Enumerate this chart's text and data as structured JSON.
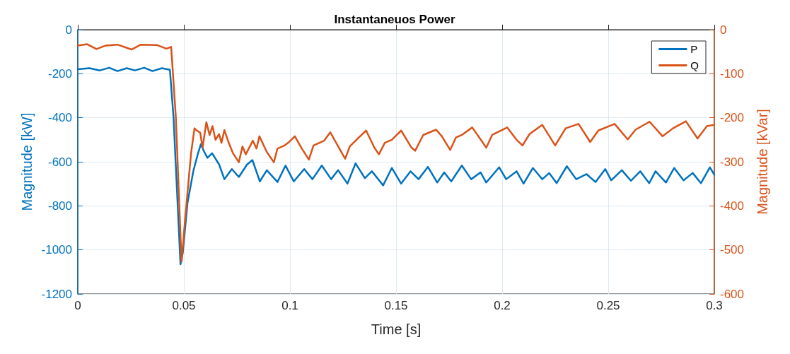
{
  "chart_data": {
    "type": "line",
    "title": "Instantaneuos Power",
    "xlabel": "Time [s]",
    "ylabel": "Magnitude [kW]",
    "y2label": "Magnitude [kVar]",
    "xlim": [
      0,
      0.3
    ],
    "xticks": [
      0,
      0.05,
      0.1,
      0.15,
      0.2,
      0.25,
      0.3
    ],
    "ylim": [
      -1200,
      0
    ],
    "yticks": [
      -1200,
      -1000,
      -800,
      -600,
      -400,
      -200,
      0
    ],
    "y2lim": [
      -600,
      0
    ],
    "y2ticks": [
      -600,
      -500,
      -400,
      -300,
      -200,
      -100,
      0
    ],
    "grid": true,
    "legend": "top right",
    "marker": "none",
    "line_style": "solid",
    "series": [
      {
        "name": "P",
        "color": "#0072bd",
        "x": [
          0,
          0.0055,
          0.0104,
          0.0148,
          0.0187,
          0.0231,
          0.0269,
          0.0313,
          0.0352,
          0.0396,
          0.0434,
          0.0451,
          0.0484,
          0.0495,
          0.0517,
          0.0545,
          0.0567,
          0.058,
          0.0594,
          0.0611,
          0.0633,
          0.0666,
          0.0691,
          0.0726,
          0.0759,
          0.0798,
          0.0823,
          0.0858,
          0.0891,
          0.0941,
          0.0979,
          0.1018,
          0.1067,
          0.1106,
          0.115,
          0.1194,
          0.1227,
          0.1271,
          0.1309,
          0.1353,
          0.1386,
          0.1439,
          0.148,
          0.1524,
          0.1568,
          0.1606,
          0.165,
          0.1694,
          0.1727,
          0.176,
          0.181,
          0.1854,
          0.1898,
          0.1925,
          0.1986,
          0.2019,
          0.2068,
          0.2101,
          0.2145,
          0.2189,
          0.2222,
          0.2257,
          0.2305,
          0.2349,
          0.2398,
          0.244,
          0.2486,
          0.2514,
          0.2564,
          0.2607,
          0.2651,
          0.2693,
          0.2723,
          0.2772,
          0.2811,
          0.2855,
          0.2898,
          0.2937,
          0.2979,
          0.3
        ],
        "values": [
          -180,
          -175,
          -185,
          -173,
          -188,
          -175,
          -185,
          -173,
          -188,
          -175,
          -182,
          -396,
          -1065,
          -1012,
          -787,
          -640,
          -560,
          -520,
          -551,
          -582,
          -561,
          -612,
          -679,
          -633,
          -669,
          -612,
          -592,
          -689,
          -638,
          -692,
          -617,
          -689,
          -633,
          -679,
          -617,
          -679,
          -638,
          -699,
          -607,
          -674,
          -643,
          -707,
          -628,
          -699,
          -643,
          -679,
          -623,
          -694,
          -648,
          -689,
          -617,
          -679,
          -648,
          -694,
          -625,
          -679,
          -643,
          -699,
          -628,
          -679,
          -651,
          -697,
          -620,
          -679,
          -656,
          -692,
          -633,
          -684,
          -638,
          -686,
          -643,
          -697,
          -643,
          -694,
          -628,
          -684,
          -651,
          -697,
          -625,
          -659
        ]
      },
      {
        "name": "Q",
        "color": "#d95319",
        "axis": "y2",
        "x": [
          0,
          0.0044,
          0.0088,
          0.0132,
          0.0187,
          0.0253,
          0.0297,
          0.0374,
          0.0418,
          0.044,
          0.0462,
          0.0489,
          0.0506,
          0.0534,
          0.055,
          0.0561,
          0.0577,
          0.0588,
          0.0606,
          0.0621,
          0.0635,
          0.0649,
          0.0666,
          0.0677,
          0.0691,
          0.071,
          0.0732,
          0.0759,
          0.0776,
          0.0792,
          0.0825,
          0.0842,
          0.0856,
          0.0891,
          0.0924,
          0.0941,
          0.0974,
          0.0996,
          0.1023,
          0.1056,
          0.1089,
          0.1111,
          0.1161,
          0.119,
          0.1227,
          0.126,
          0.1282,
          0.1326,
          0.1359,
          0.1398,
          0.1419,
          0.1447,
          0.148,
          0.1524,
          0.1573,
          0.159,
          0.1628,
          0.1689,
          0.1716,
          0.1755,
          0.1782,
          0.181,
          0.1859,
          0.1914,
          0.1925,
          0.1953,
          0.2024,
          0.2068,
          0.2096,
          0.2129,
          0.2189,
          0.225,
          0.2299,
          0.236,
          0.2415,
          0.2453,
          0.253,
          0.2592,
          0.2629,
          0.2695,
          0.2756,
          0.2805,
          0.2866,
          0.2921,
          0.2965,
          0.3
        ],
        "values": [
          -36,
          -33,
          -44,
          -36,
          -34,
          -45,
          -34,
          -35,
          -43,
          -39,
          -198,
          -527,
          -429,
          -280,
          -224,
          -229,
          -234,
          -268,
          -210,
          -239,
          -219,
          -250,
          -237,
          -257,
          -228,
          -255,
          -281,
          -301,
          -265,
          -283,
          -252,
          -270,
          -242,
          -278,
          -301,
          -270,
          -263,
          -255,
          -242,
          -270,
          -295,
          -263,
          -252,
          -233,
          -265,
          -293,
          -265,
          -244,
          -229,
          -268,
          -283,
          -257,
          -250,
          -229,
          -268,
          -275,
          -239,
          -227,
          -242,
          -273,
          -245,
          -239,
          -222,
          -260,
          -268,
          -239,
          -222,
          -250,
          -263,
          -237,
          -216,
          -263,
          -224,
          -214,
          -255,
          -229,
          -214,
          -249,
          -227,
          -209,
          -242,
          -224,
          -208,
          -247,
          -219,
          -216
        ]
      }
    ]
  }
}
